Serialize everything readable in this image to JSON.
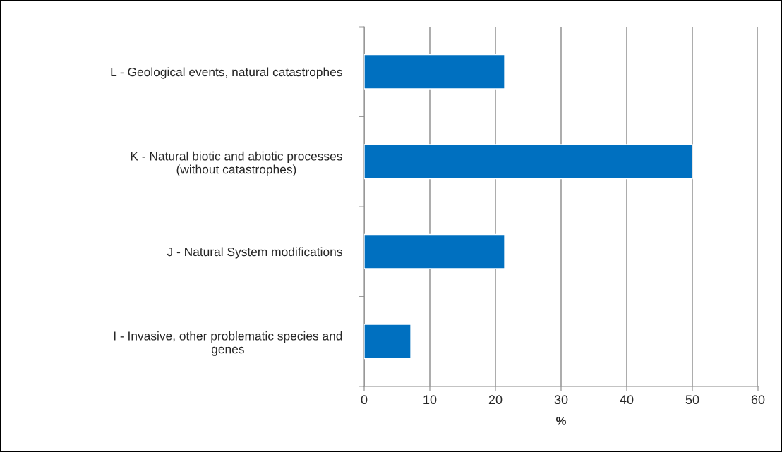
{
  "chart_data": {
    "type": "bar",
    "orientation": "horizontal",
    "categories": [
      "L - Geological events, natural catastrophes",
      "K - Natural biotic and abiotic processes\n(without catastrophes)",
      "J - Natural System modifications",
      "I - Invasive, other problematic species and\ngenes"
    ],
    "values": [
      21.4,
      50,
      21.4,
      7.1
    ],
    "color": "#0070c0",
    "xlabel": "%",
    "xlim": [
      0,
      60
    ],
    "xticks": [
      0,
      10,
      20,
      30,
      40,
      50,
      60
    ],
    "grid": "x",
    "legend": false
  }
}
